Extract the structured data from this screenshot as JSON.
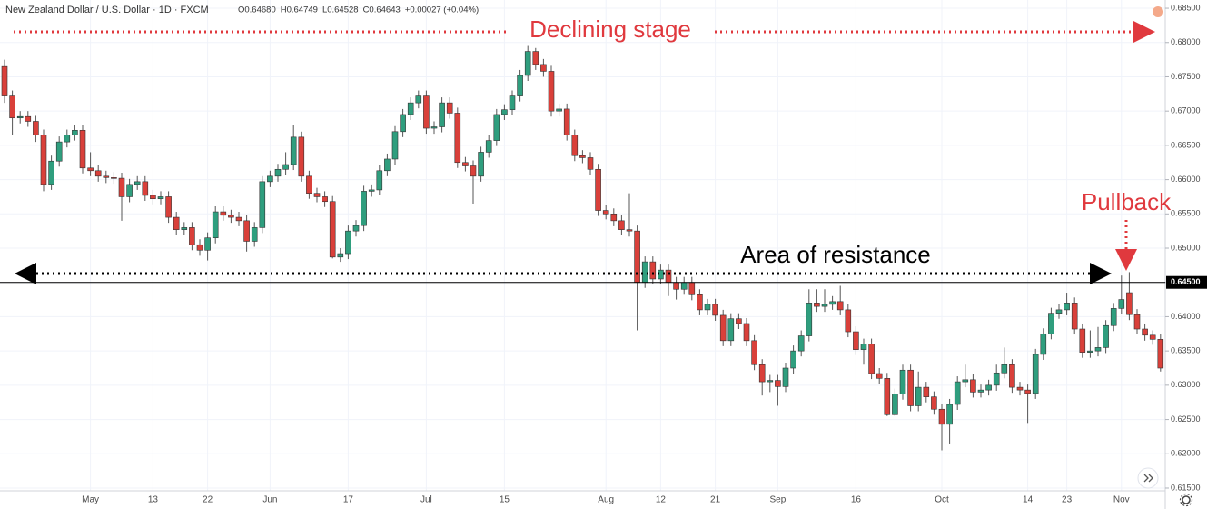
{
  "chart_data": {
    "type": "candlestick",
    "title": "New Zealand Dollar / U.S. Dollar · 1D · FXCM",
    "ohlc_legend": [
      "O0.64680",
      "H0.64749",
      "L0.64528",
      "C0.64643",
      "+0.00027 (+0.04%)"
    ],
    "annotations": [
      "Declining  stage",
      "Area of  resistance",
      "Pullback"
    ],
    "up_color": "#2f9e7e",
    "down_color": "#d9403a",
    "grid": true,
    "ylim": [
      0.6146,
      0.6862
    ],
    "yticks": [
      {
        "value": 0.615,
        "label": "0.61500"
      },
      {
        "value": 0.62,
        "label": "0.62000"
      },
      {
        "value": 0.625,
        "label": "0.62500"
      },
      {
        "value": 0.63,
        "label": "0.63000"
      },
      {
        "value": 0.635,
        "label": "0.63500"
      },
      {
        "value": 0.64,
        "label": "0.64000"
      },
      {
        "value": 0.645,
        "label": "0.64500"
      },
      {
        "value": 0.65,
        "label": "0.65000"
      },
      {
        "value": 0.655,
        "label": "0.65500"
      },
      {
        "value": 0.66,
        "label": "0.66000"
      },
      {
        "value": 0.665,
        "label": "0.66500"
      },
      {
        "value": 0.67,
        "label": "0.67000"
      },
      {
        "value": 0.675,
        "label": "0.67500"
      },
      {
        "value": 0.68,
        "label": "0.68000"
      },
      {
        "value": 0.685,
        "label": "0.68500"
      }
    ],
    "price_line": {
      "value": 0.645,
      "label": "0.64500"
    },
    "categories": [
      null,
      null,
      null,
      null,
      null,
      null,
      null,
      null,
      null,
      null,
      null,
      "May",
      null,
      null,
      null,
      null,
      null,
      null,
      null,
      "13",
      null,
      null,
      null,
      null,
      null,
      null,
      "22",
      null,
      null,
      null,
      null,
      null,
      null,
      null,
      "Jun",
      null,
      null,
      null,
      null,
      null,
      null,
      null,
      null,
      null,
      "17",
      null,
      null,
      null,
      null,
      null,
      null,
      null,
      null,
      null,
      "Jul",
      null,
      null,
      null,
      null,
      null,
      null,
      null,
      null,
      null,
      "15",
      null,
      null,
      null,
      null,
      null,
      null,
      null,
      null,
      null,
      null,
      null,
      null,
      "Aug",
      null,
      null,
      null,
      null,
      null,
      null,
      "12",
      null,
      null,
      null,
      null,
      null,
      null,
      "21",
      null,
      null,
      null,
      null,
      null,
      null,
      null,
      "Sep",
      null,
      null,
      null,
      null,
      null,
      null,
      null,
      null,
      null,
      "16",
      null,
      null,
      null,
      null,
      null,
      null,
      null,
      null,
      null,
      null,
      "Oct",
      null,
      null,
      null,
      null,
      null,
      null,
      null,
      null,
      null,
      null,
      "14",
      null,
      null,
      null,
      null,
      "23",
      null,
      null,
      null,
      null,
      null,
      null,
      "Nov",
      null,
      null,
      null,
      null,
      null
    ],
    "open": [
      0.6765,
      0.6722,
      0.669,
      0.6692,
      0.6685,
      0.6665,
      0.6593,
      0.6627,
      0.6655,
      0.6665,
      0.6672,
      0.6617,
      0.6613,
      0.6605,
      0.6603,
      0.6602,
      0.6575,
      0.6593,
      0.6597,
      0.6577,
      0.6572,
      0.6575,
      0.6545,
      0.6527,
      0.653,
      0.6505,
      0.6497,
      0.6515,
      0.6553,
      0.6548,
      0.6545,
      0.654,
      0.651,
      0.653,
      0.6597,
      0.6605,
      0.6615,
      0.6622,
      0.6662,
      0.6605,
      0.658,
      0.6575,
      0.6568,
      0.6487,
      0.6492,
      0.6525,
      0.6533,
      0.6583,
      0.6585,
      0.6613,
      0.663,
      0.667,
      0.6695,
      0.6712,
      0.6722,
      0.6675,
      0.6677,
      0.6712,
      0.6697,
      0.6625,
      0.662,
      0.6605,
      0.664,
      0.6657,
      0.6695,
      0.6702,
      0.6722,
      0.6752,
      0.6787,
      0.6768,
      0.6758,
      0.67,
      0.6703,
      0.6665,
      0.6635,
      0.6632,
      0.6615,
      0.6555,
      0.655,
      0.654,
      0.6527,
      0.6525,
      0.645,
      0.648,
      0.6455,
      0.6468,
      0.645,
      0.644,
      0.645,
      0.6432,
      0.641,
      0.6418,
      0.6402,
      0.6365,
      0.6397,
      0.639,
      0.6365,
      0.633,
      0.6305,
      0.6307,
      0.6298,
      0.6325,
      0.635,
      0.6372,
      0.642,
      0.6415,
      0.6418,
      0.6422,
      0.641,
      0.6378,
      0.6352,
      0.636,
      0.6317,
      0.631,
      0.6257,
      0.6287,
      0.6322,
      0.627,
      0.6297,
      0.6283,
      0.6265,
      0.6243,
      0.6272,
      0.6305,
      0.6308,
      0.629,
      0.6293,
      0.63,
      0.6318,
      0.633,
      0.6297,
      0.6293,
      0.6288,
      0.6345,
      0.6375,
      0.6405,
      0.641,
      0.642,
      0.6382,
      0.6348,
      0.635,
      0.6355,
      0.6387,
      0.6412,
      0.6435,
      0.6403,
      0.6382,
      0.6373,
      0.6367
    ],
    "high": [
      0.6775,
      0.673,
      0.67,
      0.67,
      0.6693,
      0.6673,
      0.6635,
      0.6663,
      0.6673,
      0.668,
      0.668,
      0.664,
      0.6621,
      0.6613,
      0.6611,
      0.661,
      0.6601,
      0.6605,
      0.6605,
      0.6585,
      0.6583,
      0.6583,
      0.6553,
      0.6538,
      0.6538,
      0.6513,
      0.6523,
      0.6561,
      0.6561,
      0.6556,
      0.6553,
      0.6548,
      0.6538,
      0.6605,
      0.6613,
      0.6623,
      0.664,
      0.668,
      0.667,
      0.6613,
      0.6588,
      0.6583,
      0.6576,
      0.65,
      0.6533,
      0.6541,
      0.6591,
      0.6593,
      0.6621,
      0.6638,
      0.6678,
      0.6703,
      0.672,
      0.673,
      0.673,
      0.6685,
      0.672,
      0.672,
      0.6705,
      0.6633,
      0.6628,
      0.6648,
      0.6665,
      0.6703,
      0.671,
      0.673,
      0.676,
      0.6795,
      0.6792,
      0.6776,
      0.6766,
      0.6711,
      0.6711,
      0.6673,
      0.6643,
      0.664,
      0.6623,
      0.6563,
      0.6558,
      0.6548,
      0.658,
      0.6533,
      0.6488,
      0.6488,
      0.6476,
      0.6476,
      0.6458,
      0.6458,
      0.6458,
      0.644,
      0.6426,
      0.6426,
      0.641,
      0.6405,
      0.6405,
      0.6398,
      0.6373,
      0.6338,
      0.6315,
      0.6315,
      0.6333,
      0.6358,
      0.638,
      0.644,
      0.644,
      0.644,
      0.643,
      0.6445,
      0.6418,
      0.6386,
      0.6368,
      0.6368,
      0.6325,
      0.6318,
      0.6295,
      0.633,
      0.633,
      0.632,
      0.6305,
      0.6291,
      0.6273,
      0.628,
      0.6313,
      0.633,
      0.6316,
      0.6301,
      0.6308,
      0.633,
      0.6355,
      0.6338,
      0.6305,
      0.6301,
      0.6353,
      0.6383,
      0.6413,
      0.6418,
      0.6435,
      0.6428,
      0.639,
      0.638,
      0.6385,
      0.6395,
      0.642,
      0.646,
      0.6465,
      0.6411,
      0.639,
      0.638,
      0.6375
    ],
    "low": [
      0.6712,
      0.6665,
      0.6682,
      0.6677,
      0.6655,
      0.6583,
      0.6585,
      0.6619,
      0.6647,
      0.6657,
      0.6609,
      0.6605,
      0.6597,
      0.6595,
      0.6594,
      0.654,
      0.6567,
      0.6585,
      0.6569,
      0.6564,
      0.6564,
      0.6537,
      0.6519,
      0.6519,
      0.6497,
      0.6489,
      0.6482,
      0.6507,
      0.654,
      0.6537,
      0.6532,
      0.6495,
      0.6502,
      0.6522,
      0.6589,
      0.6597,
      0.6607,
      0.6614,
      0.6597,
      0.6572,
      0.6567,
      0.656,
      0.6485,
      0.648,
      0.6484,
      0.6517,
      0.6525,
      0.6575,
      0.6577,
      0.6605,
      0.6622,
      0.6662,
      0.6687,
      0.6704,
      0.6667,
      0.6667,
      0.6669,
      0.6689,
      0.6617,
      0.6612,
      0.6565,
      0.6597,
      0.6632,
      0.6649,
      0.6687,
      0.6694,
      0.6714,
      0.6744,
      0.676,
      0.675,
      0.6692,
      0.6692,
      0.6657,
      0.6627,
      0.6624,
      0.6607,
      0.6547,
      0.6542,
      0.6532,
      0.6519,
      0.6517,
      0.638,
      0.6442,
      0.6447,
      0.6447,
      0.643,
      0.6425,
      0.6432,
      0.6424,
      0.6402,
      0.6402,
      0.6394,
      0.6357,
      0.6357,
      0.6382,
      0.6357,
      0.6322,
      0.6285,
      0.629,
      0.627,
      0.629,
      0.6317,
      0.6342,
      0.6364,
      0.6407,
      0.6407,
      0.641,
      0.6402,
      0.637,
      0.6344,
      0.633,
      0.6309,
      0.6302,
      0.6255,
      0.6255,
      0.6279,
      0.6262,
      0.6262,
      0.6275,
      0.6257,
      0.6205,
      0.6215,
      0.6264,
      0.6297,
      0.6282,
      0.6282,
      0.6285,
      0.6292,
      0.631,
      0.6289,
      0.6285,
      0.6245,
      0.628,
      0.6337,
      0.6367,
      0.6397,
      0.6402,
      0.6374,
      0.634,
      0.634,
      0.6342,
      0.6347,
      0.6379,
      0.6404,
      0.6395,
      0.6374,
      0.6365,
      0.6359,
      0.632
    ],
    "close": [
      0.6722,
      0.669,
      0.6692,
      0.6685,
      0.6665,
      0.6593,
      0.6627,
      0.6655,
      0.6665,
      0.6672,
      0.6617,
      0.6613,
      0.6605,
      0.6603,
      0.6602,
      0.6575,
      0.6593,
      0.6597,
      0.6577,
      0.6572,
      0.6575,
      0.6545,
      0.6527,
      0.653,
      0.6505,
      0.6497,
      0.6515,
      0.6553,
      0.6548,
      0.6545,
      0.654,
      0.651,
      0.653,
      0.6597,
      0.6605,
      0.6615,
      0.6622,
      0.6662,
      0.6605,
      0.658,
      0.6575,
      0.6568,
      0.6487,
      0.6492,
      0.6525,
      0.6533,
      0.6583,
      0.6585,
      0.6613,
      0.663,
      0.667,
      0.6695,
      0.6712,
      0.6722,
      0.6675,
      0.6677,
      0.6712,
      0.6697,
      0.6625,
      0.662,
      0.6605,
      0.664,
      0.6657,
      0.6695,
      0.6702,
      0.6722,
      0.6752,
      0.6787,
      0.6768,
      0.6758,
      0.67,
      0.6703,
      0.6665,
      0.6635,
      0.6632,
      0.6615,
      0.6555,
      0.655,
      0.654,
      0.6527,
      0.6525,
      0.645,
      0.648,
      0.6455,
      0.6468,
      0.645,
      0.644,
      0.645,
      0.6432,
      0.641,
      0.6418,
      0.6402,
      0.6365,
      0.6397,
      0.639,
      0.6365,
      0.633,
      0.6305,
      0.6307,
      0.6298,
      0.6325,
      0.635,
      0.6372,
      0.642,
      0.6415,
      0.6418,
      0.6422,
      0.641,
      0.6378,
      0.6352,
      0.636,
      0.6317,
      0.631,
      0.6257,
      0.6287,
      0.6322,
      0.627,
      0.6297,
      0.6283,
      0.6265,
      0.6243,
      0.6272,
      0.6305,
      0.6308,
      0.629,
      0.6293,
      0.63,
      0.6318,
      0.633,
      0.6297,
      0.6293,
      0.6288,
      0.6345,
      0.6375,
      0.6405,
      0.641,
      0.642,
      0.6382,
      0.6348,
      0.635,
      0.6355,
      0.6387,
      0.6412,
      0.6425,
      0.6403,
      0.6382,
      0.6373,
      0.6367,
      0.6325
    ]
  }
}
